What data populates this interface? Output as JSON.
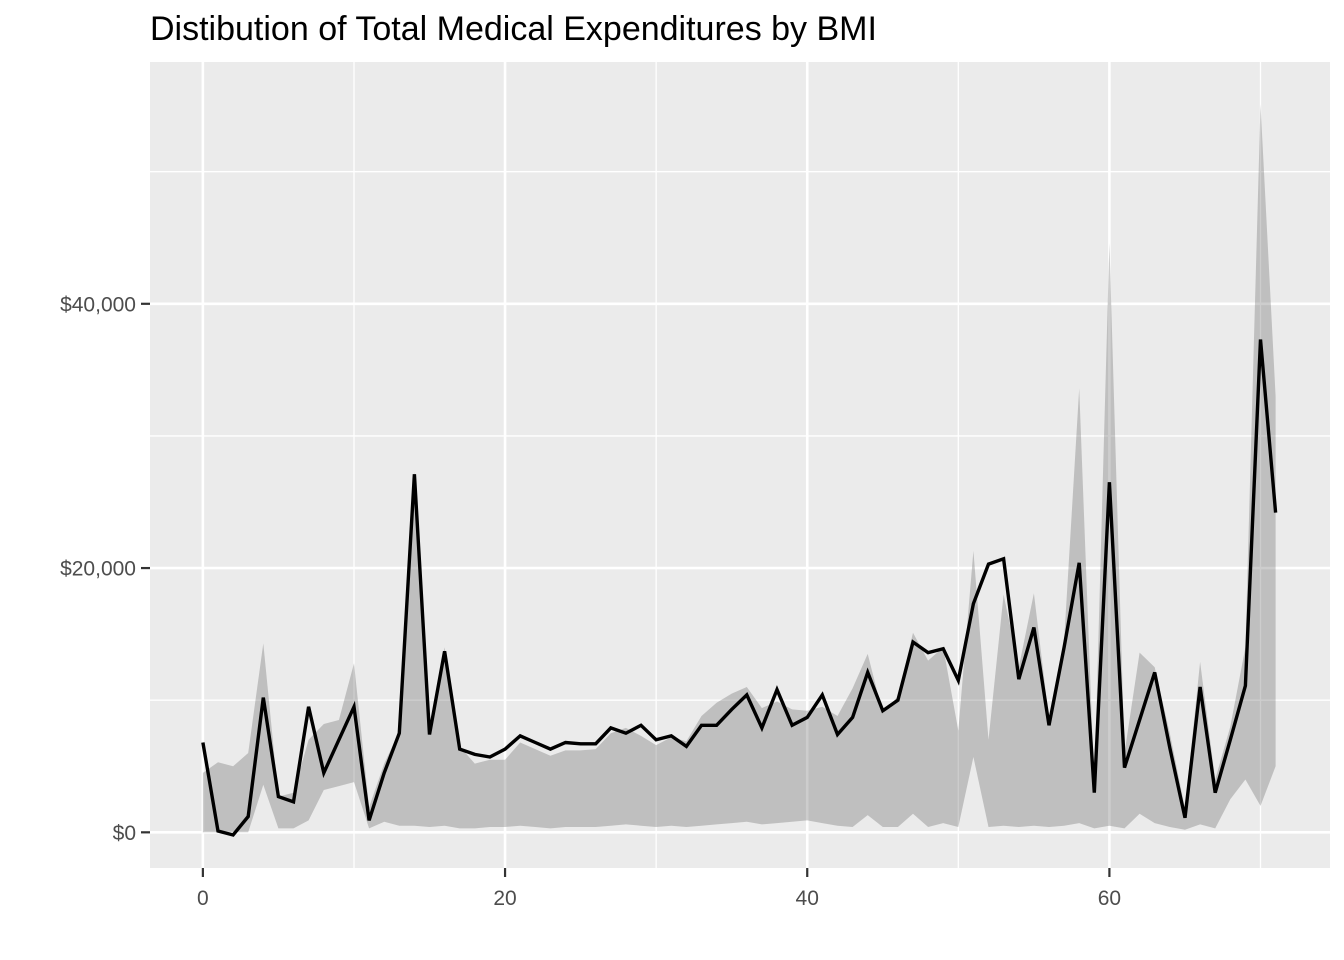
{
  "title": "Distibution of Total Medical Expenditures by BMI",
  "colors": {
    "panel_background": "#EBEBEB",
    "gridline": "#FFFFFF",
    "ribbon": "rgba(101,101,101,0.32)",
    "line": "#000000",
    "axis_text": "#4D4D4D",
    "tick_mark": "#333333",
    "title_text": "#000000",
    "figure_background": "#FFFFFF"
  },
  "chart_data": {
    "type": "line",
    "title": "Distibution of Total Medical Expenditures by BMI",
    "xlabel": "",
    "ylabel": "",
    "legend": "none",
    "grid": "white major and minor gridlines on grey panel",
    "xlim": [
      0,
      71
    ],
    "ylim": [
      0,
      55100
    ],
    "x_domain_shown": [
      -3.5,
      74.6
    ],
    "y_domain_shown": [
      -2700,
      58300
    ],
    "x_ticks": {
      "values": [
        0,
        20,
        40,
        60
      ],
      "labels": [
        "0",
        "20",
        "40",
        "60"
      ]
    },
    "x_minor_ticks": [
      10,
      30,
      50,
      70
    ],
    "y_ticks": {
      "values": [
        0,
        20000,
        40000
      ],
      "labels": [
        "$0",
        "$20,000",
        "$40,000"
      ]
    },
    "y_minor_ticks": [
      10000,
      30000,
      50000
    ],
    "x": [
      0,
      1,
      2,
      3,
      4,
      5,
      6,
      7,
      8,
      9,
      10,
      11,
      12,
      13,
      14,
      15,
      16,
      17,
      18,
      19,
      20,
      21,
      22,
      23,
      24,
      25,
      26,
      27,
      28,
      29,
      30,
      31,
      32,
      33,
      34,
      35,
      36,
      37,
      38,
      39,
      40,
      41,
      42,
      43,
      44,
      45,
      46,
      47,
      48,
      49,
      50,
      51,
      52,
      53,
      54,
      55,
      56,
      57,
      58,
      59,
      60,
      61,
      62,
      63,
      64,
      65,
      66,
      67,
      68,
      69,
      70,
      71
    ],
    "series": [
      {
        "name": "mean-total-expenditure",
        "type": "line",
        "values": [
          6800,
          100,
          -200,
          1200,
          10200,
          2700,
          2300,
          9500,
          4500,
          7000,
          9500,
          900,
          4500,
          7500,
          27100,
          7400,
          13700,
          6300,
          5900,
          5700,
          6300,
          7300,
          6800,
          6300,
          6800,
          6700,
          6700,
          7900,
          7500,
          8100,
          7000,
          7300,
          6500,
          8100,
          8100,
          9300,
          10400,
          7900,
          10800,
          8100,
          8700,
          10400,
          7400,
          8700,
          12100,
          9200,
          10000,
          14400,
          13600,
          13900,
          11500,
          17300,
          20300,
          20700,
          11600,
          15500,
          8100,
          14000,
          20400,
          3000,
          26500,
          4900,
          8500,
          12100,
          6400,
          1100,
          11000,
          3000,
          7000,
          11100,
          37300,
          24200
        ]
      },
      {
        "name": "expenditure-band",
        "type": "ribbon",
        "lower": [
          0,
          0,
          0,
          0,
          3600,
          300,
          300,
          900,
          3200,
          3500,
          3800,
          300,
          800,
          500,
          500,
          400,
          500,
          300,
          300,
          400,
          400,
          500,
          400,
          300,
          400,
          400,
          400,
          500,
          600,
          500,
          400,
          500,
          400,
          500,
          600,
          700,
          800,
          600,
          700,
          800,
          900,
          700,
          500,
          400,
          1300,
          400,
          400,
          1400,
          400,
          700,
          400,
          5700,
          400,
          500,
          400,
          500,
          400,
          500,
          700,
          300,
          500,
          300,
          1400,
          700,
          400,
          200,
          600,
          300,
          2500,
          4000,
          2000,
          5000
        ],
        "upper": [
          4500,
          5300,
          5000,
          6000,
          14300,
          2700,
          3000,
          7000,
          8200,
          8500,
          12800,
          1900,
          5200,
          7600,
          27300,
          7900,
          14000,
          6500,
          5200,
          5500,
          5500,
          6800,
          6300,
          5800,
          6200,
          6200,
          6300,
          7500,
          7900,
          7300,
          6600,
          7200,
          6900,
          8800,
          9800,
          10500,
          11000,
          9400,
          9900,
          9300,
          9200,
          9500,
          8800,
          10900,
          13500,
          9000,
          10300,
          15100,
          13000,
          14000,
          7700,
          21300,
          7000,
          18000,
          12500,
          18100,
          8600,
          14500,
          33600,
          3500,
          44600,
          6000,
          13600,
          12500,
          7500,
          1800,
          12900,
          4000,
          8000,
          14000,
          55100,
          33000
        ]
      }
    ]
  }
}
